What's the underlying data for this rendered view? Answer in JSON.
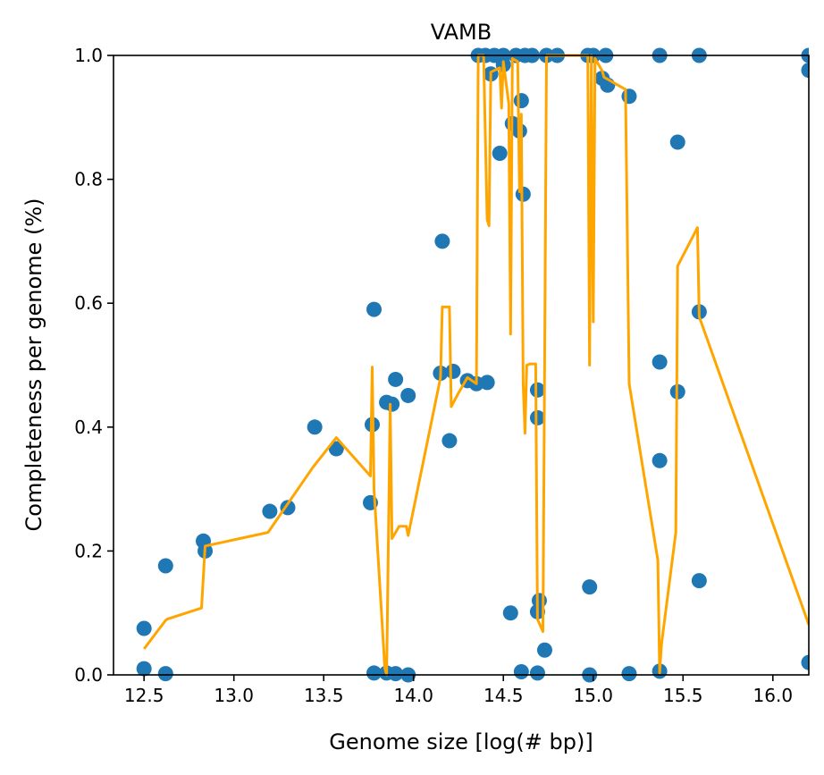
{
  "chart_data": {
    "type": "scatter",
    "title": "VAMB",
    "xlabel": "Genome size [log(# bp)]",
    "ylabel": "Completeness per genome (%)",
    "xlim": [
      12.33,
      16.2
    ],
    "ylim": [
      0.0,
      1.0
    ],
    "x_ticks": [
      "12.5",
      "13.0",
      "13.5",
      "14.0",
      "14.5",
      "15.0",
      "15.5",
      "16.0"
    ],
    "y_ticks": [
      "0.0",
      "0.2",
      "0.4",
      "0.6",
      "0.8",
      "1.0"
    ],
    "grid": false,
    "colors": {
      "points": "#1f77b4",
      "line": "#ffa500"
    },
    "points": [
      [
        12.5,
        0.075
      ],
      [
        12.5,
        0.01
      ],
      [
        12.62,
        0.176
      ],
      [
        12.62,
        0.002
      ],
      [
        12.83,
        0.216
      ],
      [
        12.84,
        0.2
      ],
      [
        13.2,
        0.264
      ],
      [
        13.3,
        0.27
      ],
      [
        13.45,
        0.4
      ],
      [
        13.57,
        0.365
      ],
      [
        13.76,
        0.278
      ],
      [
        13.77,
        0.404
      ],
      [
        13.78,
        0.59
      ],
      [
        13.78,
        0.003
      ],
      [
        13.85,
        0.44
      ],
      [
        13.85,
        0.003
      ],
      [
        13.88,
        0.437
      ],
      [
        13.9,
        0.477
      ],
      [
        13.9,
        0.002
      ],
      [
        13.97,
        0.451
      ],
      [
        13.97,
        0.0
      ],
      [
        14.15,
        0.487
      ],
      [
        14.16,
        0.7
      ],
      [
        14.2,
        0.378
      ],
      [
        14.22,
        0.49
      ],
      [
        14.3,
        0.475
      ],
      [
        14.35,
        0.47
      ],
      [
        14.41,
        0.472
      ],
      [
        14.36,
        1.0
      ],
      [
        14.4,
        1.0
      ],
      [
        14.43,
        0.97
      ],
      [
        14.45,
        1.0
      ],
      [
        14.48,
        0.842
      ],
      [
        14.5,
        1.0
      ],
      [
        14.5,
        0.985
      ],
      [
        14.54,
        0.1
      ],
      [
        14.55,
        0.89
      ],
      [
        14.57,
        1.0
      ],
      [
        14.59,
        0.878
      ],
      [
        14.6,
        0.927
      ],
      [
        14.61,
        0.776
      ],
      [
        14.6,
        0.005
      ],
      [
        14.62,
        1.0
      ],
      [
        14.66,
        1.0
      ],
      [
        14.69,
        0.46
      ],
      [
        14.69,
        0.415
      ],
      [
        14.7,
        0.12
      ],
      [
        14.69,
        0.102
      ],
      [
        14.69,
        0.003
      ],
      [
        14.73,
        0.04
      ],
      [
        14.74,
        1.0
      ],
      [
        14.8,
        1.0
      ],
      [
        14.98,
        0.142
      ],
      [
        14.98,
        0.0
      ],
      [
        14.97,
        1.0
      ],
      [
        15.0,
        1.0
      ],
      [
        15.05,
        0.963
      ],
      [
        15.08,
        0.952
      ],
      [
        15.07,
        1.0
      ],
      [
        15.2,
        0.934
      ],
      [
        15.2,
        0.002
      ],
      [
        15.37,
        1.0
      ],
      [
        15.37,
        0.505
      ],
      [
        15.37,
        0.346
      ],
      [
        15.37,
        0.006
      ],
      [
        15.47,
        0.86
      ],
      [
        15.47,
        0.457
      ],
      [
        15.59,
        1.0
      ],
      [
        15.59,
        0.586
      ],
      [
        15.59,
        0.152
      ],
      [
        16.2,
        1.0
      ],
      [
        16.2,
        0.976
      ],
      [
        16.2,
        0.02
      ]
    ],
    "line": [
      [
        12.5,
        0.042
      ],
      [
        12.62,
        0.088
      ],
      [
        12.63,
        0.09
      ],
      [
        12.82,
        0.108
      ],
      [
        12.84,
        0.208
      ],
      [
        13.19,
        0.23
      ],
      [
        13.44,
        0.335
      ],
      [
        13.57,
        0.383
      ],
      [
        13.76,
        0.321
      ],
      [
        13.77,
        0.497
      ],
      [
        13.78,
        0.3
      ],
      [
        13.84,
        0.011
      ],
      [
        13.85,
        0.0
      ],
      [
        13.87,
        0.437
      ],
      [
        13.88,
        0.22
      ],
      [
        13.92,
        0.24
      ],
      [
        13.96,
        0.24
      ],
      [
        13.97,
        0.225
      ],
      [
        14.15,
        0.48
      ],
      [
        14.16,
        0.594
      ],
      [
        14.2,
        0.594
      ],
      [
        14.21,
        0.433
      ],
      [
        14.25,
        0.455
      ],
      [
        14.3,
        0.48
      ],
      [
        14.35,
        0.47
      ],
      [
        14.36,
        1.0
      ],
      [
        14.39,
        1.0
      ],
      [
        14.41,
        0.735
      ],
      [
        14.42,
        0.725
      ],
      [
        14.43,
        0.973
      ],
      [
        14.48,
        0.98
      ],
      [
        14.49,
        0.915
      ],
      [
        14.5,
        0.99
      ],
      [
        14.53,
        0.922
      ],
      [
        14.54,
        0.55
      ],
      [
        14.55,
        0.995
      ],
      [
        14.58,
        0.99
      ],
      [
        14.59,
        0.78
      ],
      [
        14.6,
        0.905
      ],
      [
        14.61,
        0.47
      ],
      [
        14.62,
        0.39
      ],
      [
        14.63,
        0.5
      ],
      [
        14.65,
        0.502
      ],
      [
        14.68,
        0.502
      ],
      [
        14.69,
        0.09
      ],
      [
        14.72,
        0.07
      ],
      [
        14.73,
        0.525
      ],
      [
        14.74,
        1.0
      ],
      [
        14.97,
        1.0
      ],
      [
        14.98,
        0.5
      ],
      [
        14.99,
        1.0
      ],
      [
        15.0,
        0.57
      ],
      [
        15.01,
        0.995
      ],
      [
        15.05,
        0.975
      ],
      [
        15.06,
        0.965
      ],
      [
        15.18,
        0.945
      ],
      [
        15.2,
        0.47
      ],
      [
        15.36,
        0.185
      ],
      [
        15.37,
        0.003
      ],
      [
        15.38,
        0.05
      ],
      [
        15.46,
        0.23
      ],
      [
        15.47,
        0.66
      ],
      [
        15.58,
        0.722
      ],
      [
        15.59,
        0.578
      ],
      [
        16.2,
        0.081
      ]
    ]
  }
}
